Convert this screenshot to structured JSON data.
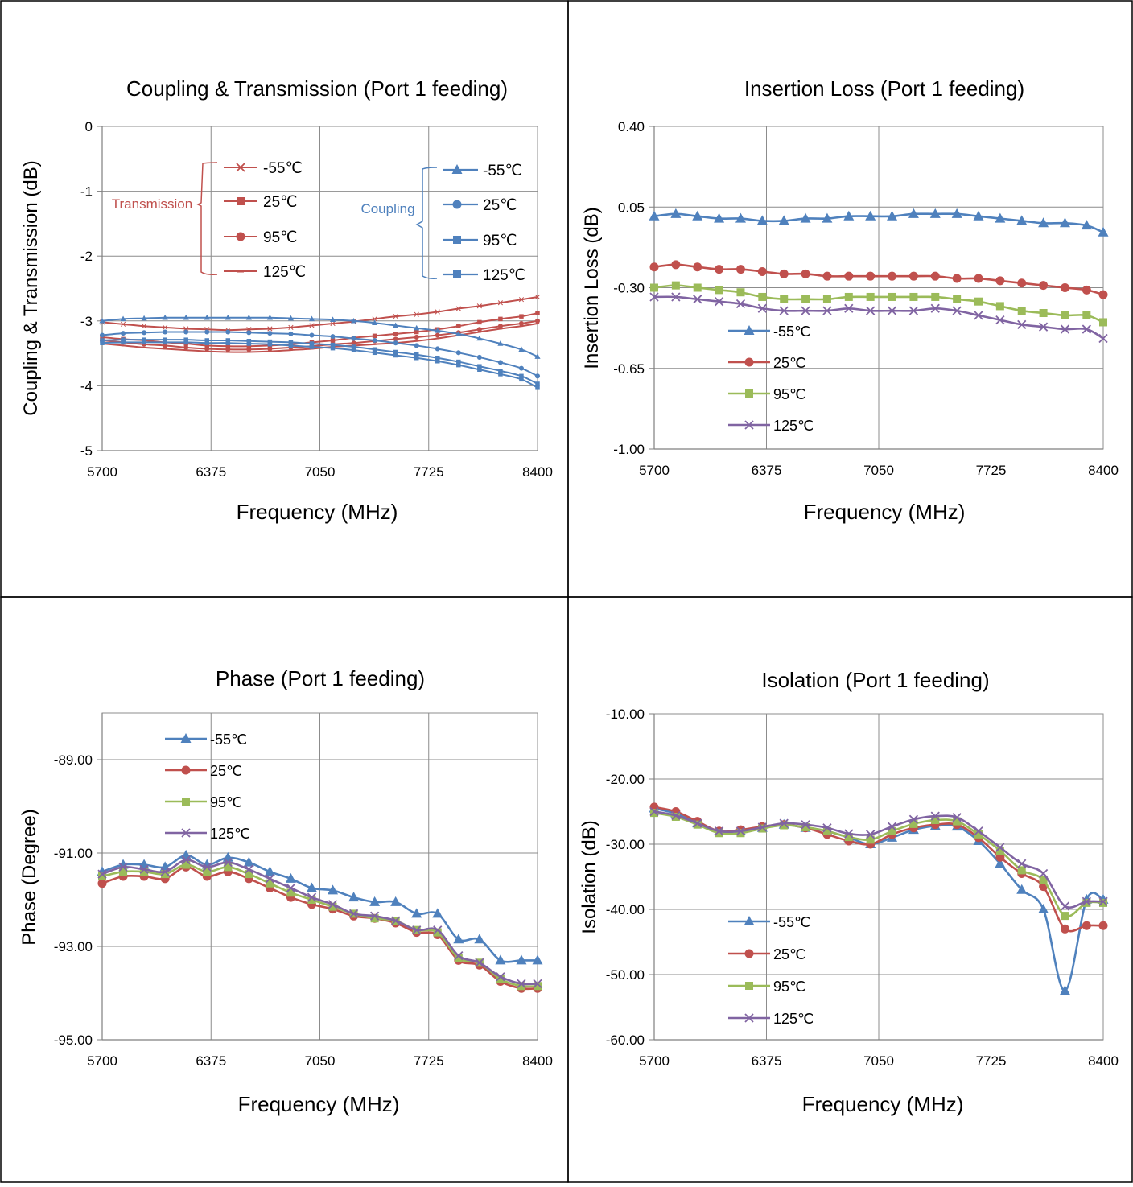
{
  "chart_data": [
    {
      "type": "line",
      "title": "Coupling & Transmission (Port 1 feeding)",
      "xlabel": "Frequency (MHz)",
      "ylabel": "Coupling & Transmission (dB)",
      "xlim": [
        5700,
        8400
      ],
      "ylim": [
        -5,
        0
      ],
      "xticks": [
        5700,
        6375,
        7050,
        7725,
        8400
      ],
      "yticks": [
        0,
        -1,
        -2,
        -3,
        -4,
        -5
      ],
      "ytick_labels": [
        "0",
        "-1",
        "-2",
        "-3",
        "-4",
        "-5"
      ],
      "grid": true,
      "group_labels": [
        {
          "text": "Transmission",
          "color": "#C0504D"
        },
        {
          "text": "Coupling",
          "color": "#4F81BD"
        }
      ],
      "x": [
        5700,
        5830,
        5960,
        6090,
        6220,
        6350,
        6480,
        6610,
        6740,
        6870,
        7000,
        7130,
        7260,
        7390,
        7520,
        7650,
        7780,
        7910,
        8040,
        8170,
        8300,
        8400
      ],
      "series": [
        {
          "name": "-55℃",
          "group": "Transmission",
          "color": "#C0504D",
          "marker": "x",
          "values": [
            -3.02,
            -3.05,
            -3.08,
            -3.1,
            -3.12,
            -3.13,
            -3.14,
            -3.13,
            -3.12,
            -3.1,
            -3.07,
            -3.04,
            -3.01,
            -2.97,
            -2.93,
            -2.9,
            -2.86,
            -2.81,
            -2.77,
            -2.72,
            -2.67,
            -2.63
          ]
        },
        {
          "name": "25℃",
          "group": "Transmission",
          "color": "#C0504D",
          "marker": "square",
          "values": [
            -3.25,
            -3.28,
            -3.3,
            -3.33,
            -3.35,
            -3.38,
            -3.39,
            -3.39,
            -3.38,
            -3.36,
            -3.33,
            -3.3,
            -3.26,
            -3.23,
            -3.2,
            -3.17,
            -3.13,
            -3.08,
            -3.02,
            -2.97,
            -2.93,
            -2.88
          ]
        },
        {
          "name": "95℃",
          "group": "Transmission",
          "color": "#C0504D",
          "marker": "circle",
          "values": [
            -3.3,
            -3.33,
            -3.36,
            -3.38,
            -3.41,
            -3.43,
            -3.44,
            -3.44,
            -3.43,
            -3.41,
            -3.39,
            -3.36,
            -3.34,
            -3.31,
            -3.28,
            -3.25,
            -3.22,
            -3.18,
            -3.13,
            -3.08,
            -3.04,
            -3.0
          ]
        },
        {
          "name": "125℃",
          "group": "Transmission",
          "color": "#C0504D",
          "marker": "dash",
          "values": [
            -3.35,
            -3.38,
            -3.41,
            -3.43,
            -3.45,
            -3.47,
            -3.48,
            -3.48,
            -3.47,
            -3.45,
            -3.43,
            -3.4,
            -3.38,
            -3.36,
            -3.34,
            -3.31,
            -3.27,
            -3.22,
            -3.17,
            -3.12,
            -3.08,
            -3.04
          ]
        },
        {
          "name": "-55℃",
          "group": "Coupling",
          "color": "#4F81BD",
          "marker": "triangle",
          "values": [
            -3.0,
            -2.97,
            -2.96,
            -2.95,
            -2.95,
            -2.95,
            -2.95,
            -2.95,
            -2.95,
            -2.96,
            -2.97,
            -2.98,
            -3.0,
            -3.03,
            -3.07,
            -3.11,
            -3.15,
            -3.2,
            -3.27,
            -3.35,
            -3.44,
            -3.55
          ]
        },
        {
          "name": "25℃",
          "group": "Coupling",
          "color": "#4F81BD",
          "marker": "circle",
          "values": [
            -3.22,
            -3.19,
            -3.18,
            -3.17,
            -3.17,
            -3.17,
            -3.17,
            -3.18,
            -3.19,
            -3.2,
            -3.22,
            -3.24,
            -3.27,
            -3.3,
            -3.34,
            -3.38,
            -3.43,
            -3.49,
            -3.56,
            -3.64,
            -3.73,
            -3.85
          ]
        },
        {
          "name": "95℃",
          "group": "Coupling",
          "color": "#4F81BD",
          "marker": "square",
          "values": [
            -3.3,
            -3.29,
            -3.29,
            -3.29,
            -3.29,
            -3.3,
            -3.3,
            -3.31,
            -3.32,
            -3.33,
            -3.35,
            -3.37,
            -3.4,
            -3.44,
            -3.48,
            -3.52,
            -3.57,
            -3.63,
            -3.7,
            -3.77,
            -3.85,
            -3.97
          ]
        },
        {
          "name": "125℃",
          "group": "Coupling",
          "color": "#4F81BD",
          "marker": "square",
          "values": [
            -3.34,
            -3.33,
            -3.33,
            -3.33,
            -3.33,
            -3.34,
            -3.34,
            -3.35,
            -3.36,
            -3.38,
            -3.4,
            -3.42,
            -3.45,
            -3.49,
            -3.53,
            -3.57,
            -3.62,
            -3.68,
            -3.75,
            -3.82,
            -3.9,
            -4.03
          ]
        }
      ]
    },
    {
      "type": "line",
      "title": "Insertion Loss (Port 1 feeding)",
      "xlabel": "Frequency (MHz)",
      "ylabel": "Insertion Loss (dB)",
      "xlim": [
        5700,
        8400
      ],
      "ylim": [
        -1.0,
        0.4
      ],
      "xticks": [
        5700,
        6375,
        7050,
        7725,
        8400
      ],
      "yticks": [
        0.4,
        0.05,
        -0.3,
        -0.65,
        -1.0
      ],
      "ytick_labels": [
        "0.40",
        "0.05",
        "-0.30",
        "-0.65",
        "-1.00"
      ],
      "grid": true,
      "legend": "lower-left",
      "x": [
        5700,
        5830,
        5960,
        6090,
        6220,
        6350,
        6480,
        6610,
        6740,
        6870,
        7000,
        7130,
        7260,
        7390,
        7520,
        7650,
        7780,
        7910,
        8040,
        8170,
        8300,
        8400
      ],
      "series": [
        {
          "name": "-55℃",
          "color": "#4F81BD",
          "marker": "triangle",
          "values": [
            0.01,
            0.02,
            0.01,
            0.0,
            0.0,
            -0.01,
            -0.01,
            0.0,
            0.0,
            0.01,
            0.01,
            0.01,
            0.02,
            0.02,
            0.02,
            0.01,
            0.0,
            -0.01,
            -0.02,
            -0.02,
            -0.03,
            -0.06
          ]
        },
        {
          "name": "25℃",
          "color": "#C0504D",
          "marker": "circle",
          "values": [
            -0.21,
            -0.2,
            -0.21,
            -0.22,
            -0.22,
            -0.23,
            -0.24,
            -0.24,
            -0.25,
            -0.25,
            -0.25,
            -0.25,
            -0.25,
            -0.25,
            -0.26,
            -0.26,
            -0.27,
            -0.28,
            -0.29,
            -0.3,
            -0.31,
            -0.33
          ]
        },
        {
          "name": "95℃",
          "color": "#9BBB59",
          "marker": "square",
          "values": [
            -0.3,
            -0.29,
            -0.3,
            -0.31,
            -0.32,
            -0.34,
            -0.35,
            -0.35,
            -0.35,
            -0.34,
            -0.34,
            -0.34,
            -0.34,
            -0.34,
            -0.35,
            -0.36,
            -0.38,
            -0.4,
            -0.41,
            -0.42,
            -0.42,
            -0.45
          ]
        },
        {
          "name": "125℃",
          "color": "#8064A2",
          "marker": "x",
          "values": [
            -0.34,
            -0.34,
            -0.35,
            -0.36,
            -0.37,
            -0.39,
            -0.4,
            -0.4,
            -0.4,
            -0.39,
            -0.4,
            -0.4,
            -0.4,
            -0.39,
            -0.4,
            -0.42,
            -0.44,
            -0.46,
            -0.47,
            -0.48,
            -0.48,
            -0.52
          ]
        }
      ]
    },
    {
      "type": "line",
      "title": "Phase (Port 1 feeding)",
      "xlabel": "Frequency (MHz)",
      "ylabel": "Phase (Degree)",
      "xlim": [
        5700,
        8400
      ],
      "ylim": [
        -95,
        -88
      ],
      "xticks": [
        5700,
        6375,
        7050,
        7725,
        8400
      ],
      "yticks": [
        -89,
        -91,
        -93,
        -95
      ],
      "ytick_labels": [
        "-89.00",
        "-91.00",
        "-93.00",
        "-95.00"
      ],
      "grid": true,
      "legend": "top-left",
      "x": [
        5700,
        5830,
        5960,
        6090,
        6220,
        6350,
        6480,
        6610,
        6740,
        6870,
        7000,
        7130,
        7260,
        7390,
        7520,
        7650,
        7780,
        7910,
        8040,
        8170,
        8300,
        8400
      ],
      "series": [
        {
          "name": "-55℃",
          "color": "#4F81BD",
          "marker": "triangle",
          "values": [
            -91.4,
            -91.25,
            -91.25,
            -91.3,
            -91.05,
            -91.25,
            -91.1,
            -91.2,
            -91.4,
            -91.55,
            -91.75,
            -91.8,
            -91.95,
            -92.05,
            -92.05,
            -92.3,
            -92.3,
            -92.85,
            -92.85,
            -93.3,
            -93.3,
            -93.3
          ]
        },
        {
          "name": "25℃",
          "color": "#C0504D",
          "marker": "circle",
          "values": [
            -91.65,
            -91.5,
            -91.5,
            -91.55,
            -91.3,
            -91.5,
            -91.4,
            -91.55,
            -91.75,
            -91.95,
            -92.1,
            -92.2,
            -92.35,
            -92.4,
            -92.5,
            -92.7,
            -92.75,
            -93.3,
            -93.4,
            -93.75,
            -93.9,
            -93.9
          ]
        },
        {
          "name": "95℃",
          "color": "#9BBB59",
          "marker": "square",
          "values": [
            -91.5,
            -91.4,
            -91.4,
            -91.45,
            -91.25,
            -91.4,
            -91.3,
            -91.45,
            -91.65,
            -91.85,
            -92.0,
            -92.15,
            -92.3,
            -92.4,
            -92.45,
            -92.65,
            -92.7,
            -93.25,
            -93.35,
            -93.7,
            -93.85,
            -93.85
          ]
        },
        {
          "name": "125℃",
          "color": "#8064A2",
          "marker": "x",
          "values": [
            -91.45,
            -91.3,
            -91.35,
            -91.4,
            -91.15,
            -91.3,
            -91.2,
            -91.35,
            -91.55,
            -91.75,
            -91.95,
            -92.1,
            -92.3,
            -92.35,
            -92.45,
            -92.65,
            -92.65,
            -93.2,
            -93.35,
            -93.65,
            -93.8,
            -93.8
          ]
        }
      ]
    },
    {
      "type": "line",
      "title": "Isolation (Port 1 feeding)",
      "xlabel": "Frequency (MHz)",
      "ylabel": "Isolation (dB)",
      "xlim": [
        5700,
        8400
      ],
      "ylim": [
        -60,
        -10
      ],
      "xticks": [
        5700,
        6375,
        7050,
        7725,
        8400
      ],
      "yticks": [
        -10,
        -20,
        -30,
        -40,
        -50,
        -60
      ],
      "ytick_labels": [
        "-10.00",
        "-20.00",
        "-30.00",
        "-40.00",
        "-50.00",
        "-60.00"
      ],
      "grid": true,
      "legend": "lower-left",
      "x": [
        5700,
        5830,
        5960,
        6090,
        6220,
        6350,
        6480,
        6610,
        6740,
        6870,
        7000,
        7130,
        7260,
        7390,
        7520,
        7650,
        7780,
        7910,
        8040,
        8170,
        8300,
        8400
      ],
      "series": [
        {
          "name": "-55℃",
          "color": "#4F81BD",
          "marker": "triangle",
          "values": [
            -24.5,
            -25.3,
            -26.8,
            -28.0,
            -28.0,
            -27.5,
            -27.0,
            -27.5,
            -28.0,
            -29.0,
            -30.0,
            -29.0,
            -27.8,
            -27.2,
            -27.3,
            -29.5,
            -33.0,
            -37.0,
            -40.0,
            -52.5,
            -38.5,
            -38.5
          ]
        },
        {
          "name": "25℃",
          "color": "#C0504D",
          "marker": "circle",
          "values": [
            -24.3,
            -25.0,
            -26.5,
            -28.0,
            -27.8,
            -27.3,
            -27.0,
            -27.5,
            -28.5,
            -29.5,
            -30.0,
            -28.5,
            -27.5,
            -27.0,
            -27.0,
            -29.0,
            -32.0,
            -34.5,
            -36.5,
            -43.0,
            -42.5,
            -42.5
          ]
        },
        {
          "name": "95℃",
          "color": "#9BBB59",
          "marker": "square",
          "values": [
            -25.2,
            -25.8,
            -27.0,
            -28.3,
            -28.3,
            -27.6,
            -27.1,
            -27.4,
            -28.0,
            -28.9,
            -29.3,
            -28.0,
            -26.9,
            -26.3,
            -26.5,
            -28.5,
            -31.0,
            -34.0,
            -35.5,
            -41.0,
            -39.0,
            -39.0
          ]
        },
        {
          "name": "125℃",
          "color": "#8064A2",
          "marker": "x",
          "values": [
            -25.0,
            -25.6,
            -26.8,
            -28.0,
            -28.0,
            -27.4,
            -26.8,
            -27.0,
            -27.5,
            -28.4,
            -28.5,
            -27.3,
            -26.2,
            -25.7,
            -25.9,
            -28.0,
            -30.5,
            -33.0,
            -34.5,
            -39.5,
            -38.8,
            -38.8
          ]
        }
      ]
    }
  ]
}
